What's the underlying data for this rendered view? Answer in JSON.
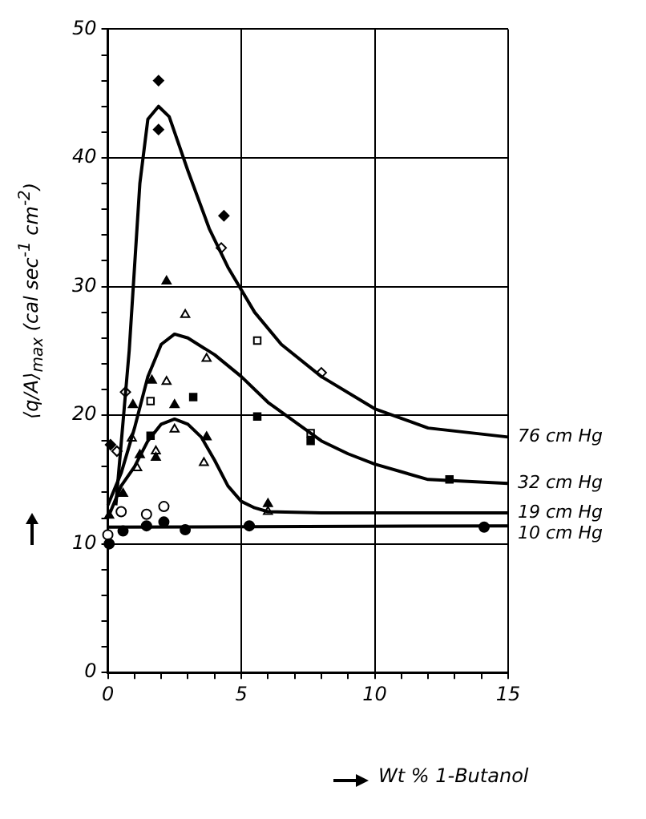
{
  "chart_data": {
    "type": "scatter",
    "xlabel": "Wt % 1-Butanol",
    "ylabel": "⟨q/A⟩$_{max}$ (cal sec$^{-1}$ cm$^{-2}$)",
    "xlim": [
      0,
      15
    ],
    "ylim": [
      0,
      50
    ],
    "xticks": [
      0,
      {
        "value": 1,
        "label": null
      },
      {
        "value": 2,
        "label": null
      },
      {
        "value": 3,
        "label": null
      },
      {
        "value": 4,
        "label": null
      },
      5,
      {
        "value": 6,
        "label": null
      },
      {
        "value": 7,
        "label": null
      },
      {
        "value": 8,
        "label": null
      },
      {
        "value": 9,
        "label": null
      },
      10,
      {
        "value": 11,
        "label": null
      },
      {
        "value": 12,
        "label": null
      },
      {
        "value": 13,
        "label": null
      },
      {
        "value": 14,
        "label": null
      },
      15
    ],
    "yticks": [
      0,
      {
        "value": 2,
        "label": null
      },
      {
        "value": 4,
        "label": null
      },
      {
        "value": 6,
        "label": null
      },
      {
        "value": 8,
        "label": null
      },
      10,
      {
        "value": 12,
        "label": null
      },
      {
        "value": 14,
        "label": null
      },
      {
        "value": 16,
        "label": null
      },
      {
        "value": 18,
        "label": null
      },
      20,
      {
        "value": 22,
        "label": null
      },
      {
        "value": 24,
        "label": null
      },
      {
        "value": 26,
        "label": null
      },
      {
        "value": 28,
        "label": null
      },
      30,
      {
        "value": 32,
        "label": null
      },
      {
        "value": 34,
        "label": null
      },
      {
        "value": 36,
        "label": null
      },
      {
        "value": 38,
        "label": null
      },
      40,
      {
        "value": 42,
        "label": null
      },
      {
        "value": 44,
        "label": null
      },
      {
        "value": 46,
        "label": null
      },
      {
        "value": 48,
        "label": null
      },
      50
    ],
    "grid": true,
    "legend": false,
    "series": [
      {
        "name": "76 cm Hg",
        "type": "line",
        "marker": "none",
        "line_style": "solid",
        "color": "#000000",
        "x": [
          0.3,
          0.8,
          1.2,
          1.5,
          1.9,
          2.3,
          3,
          3.8,
          4.5,
          5.5,
          6.5,
          8,
          10,
          12,
          15
        ],
        "values": [
          13,
          25,
          38,
          43,
          44,
          43.2,
          39,
          34.5,
          31.5,
          28,
          25.5,
          23,
          20.5,
          19,
          18.3
        ]
      },
      {
        "name": "32 cm Hg",
        "type": "line",
        "marker": "none",
        "line_style": "solid",
        "color": "#000000",
        "x": [
          0,
          0.5,
          1,
          1.5,
          2,
          2.5,
          3,
          4,
          5,
          6,
          7,
          8,
          9,
          10,
          12,
          15
        ],
        "values": [
          13,
          15.5,
          19,
          23,
          25.5,
          26.3,
          26,
          24.7,
          23,
          21,
          19.5,
          18,
          17,
          16.2,
          15,
          14.7
        ]
      },
      {
        "name": "19 cm Hg",
        "type": "line",
        "marker": "none",
        "line_style": "solid",
        "color": "#000000",
        "x": [
          0,
          0.5,
          1,
          1.5,
          2,
          2.5,
          3,
          3.5,
          4,
          4.5,
          5,
          5.5,
          6,
          8,
          15
        ],
        "values": [
          12,
          14.5,
          16,
          18,
          19.3,
          19.7,
          19.3,
          18.3,
          16.5,
          14.5,
          13.3,
          12.8,
          12.5,
          12.4,
          12.4
        ]
      },
      {
        "name": "10 cm Hg",
        "type": "line",
        "marker": "none",
        "line_style": "solid",
        "color": "#000000",
        "x": [
          0,
          15
        ],
        "values": [
          11.3,
          11.4
        ]
      },
      {
        "marker": "diamond",
        "color": "#000000",
        "x": [
          1.9,
          1.9,
          4.35,
          0.1
        ],
        "values": [
          46,
          42.2,
          35.5,
          17.7
        ]
      },
      {
        "marker": "diamond",
        "color": "#ffffff",
        "x": [
          4.25,
          8.0,
          0.66,
          0.34
        ],
        "values": [
          33,
          23.3,
          21.8,
          17.2
        ]
      },
      {
        "marker": "triangle",
        "color": "#000000",
        "x": [
          2.2,
          1.65,
          0.94
        ],
        "values": [
          30.4,
          22.7,
          20.8
        ]
      },
      {
        "marker": "triangle",
        "color": "#ffffff",
        "x": [
          2.9,
          2.2,
          3.7,
          0.9
        ],
        "values": [
          27.8,
          22.6,
          24.4,
          18.2
        ]
      },
      {
        "marker": "square",
        "color": "#000000",
        "x": [
          3.2,
          5.6,
          7.6,
          12.8,
          1.6
        ],
        "values": [
          21.4,
          19.9,
          18.0,
          15.0,
          18.4
        ]
      },
      {
        "marker": "square",
        "color": "#ffffff",
        "x": [
          1.6,
          5.6,
          7.6
        ],
        "values": [
          21.1,
          25.8,
          18.6
        ]
      },
      {
        "marker": "triangle",
        "color": "#000000",
        "x": [
          2.5,
          3.7,
          1.2,
          1.8,
          6.0,
          0.57,
          0.05
        ],
        "values": [
          20.8,
          18.3,
          16.9,
          16.7,
          13.1,
          13.9,
          12.2
        ]
      },
      {
        "marker": "triangle",
        "color": "#ffffff",
        "x": [
          2.5,
          1.8,
          1.1,
          3.6,
          6.0
        ],
        "values": [
          18.9,
          17.2,
          15.9,
          16.3,
          12.5
        ]
      },
      {
        "marker": "circle",
        "color": "#000000",
        "x": [
          0.57,
          1.45,
          2.1,
          2.9,
          5.3,
          14.1,
          0.05
        ],
        "values": [
          11.0,
          11.4,
          11.7,
          11.1,
          11.4,
          11.3,
          10.0
        ]
      },
      {
        "marker": "circle",
        "color": "#ffffff",
        "x": [
          0,
          0.5,
          1.45,
          2.1
        ],
        "values": [
          10.7,
          12.5,
          12.3,
          12.9
        ]
      }
    ]
  }
}
